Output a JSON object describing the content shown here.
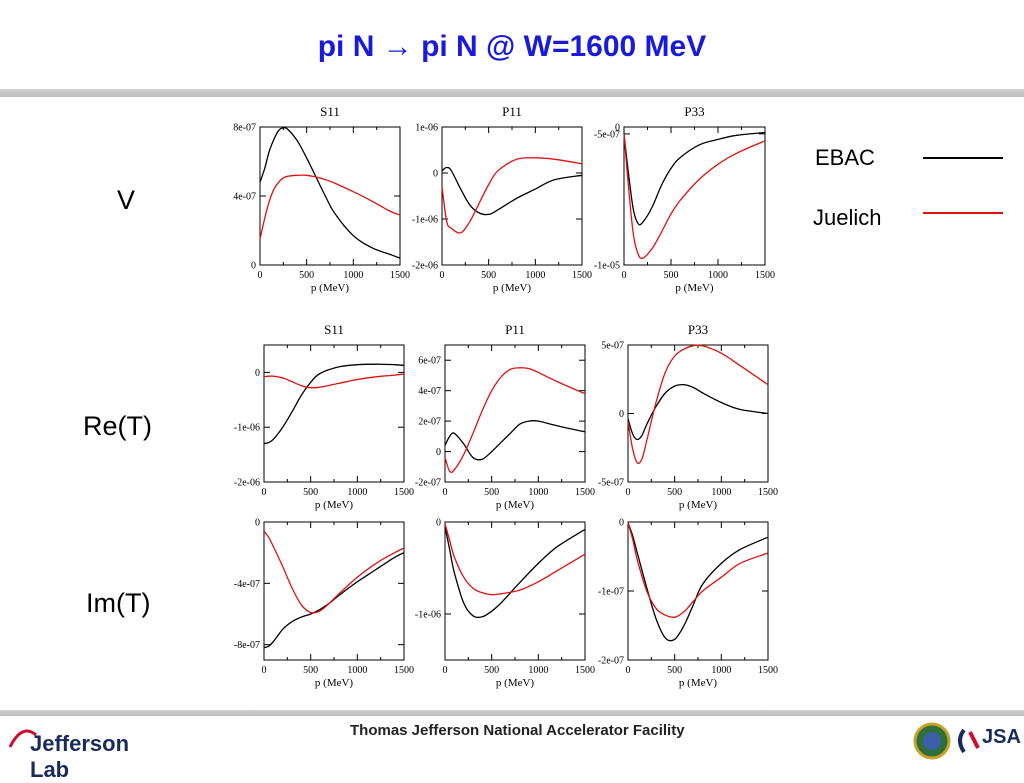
{
  "slide": {
    "title": "pi N → pi N @ W=1600 MeV",
    "rows": {
      "v": "V",
      "ret": "Re(T)",
      "imt": "Im(T)"
    },
    "footer": "Thomas Jefferson National Accelerator Facility",
    "logo_text": "Jefferson Lab",
    "jsa_text": "JSA"
  },
  "legend": [
    {
      "name": "EBAC",
      "color": "#000000"
    },
    {
      "name": "Juelich",
      "color": "#e01010"
    }
  ],
  "colors": {
    "title": "#1a1adc",
    "ebac": "#000000",
    "juelich": "#e01010"
  },
  "chart_data": [
    {
      "type": "line",
      "row": "V",
      "title": "S11",
      "xlabel": "p (MeV)",
      "xlim": [
        0,
        1500
      ],
      "ylim": [
        0,
        8e-07
      ],
      "xticks": [
        "0",
        "500",
        "1000",
        "1500"
      ],
      "yticks": [
        "0",
        "4e-07",
        "8e-07"
      ],
      "x": [
        0,
        50,
        100,
        150,
        200,
        250,
        300,
        400,
        500,
        600,
        700,
        800,
        1000,
        1200,
        1400,
        1500
      ],
      "series": [
        {
          "name": "EBAC",
          "values": [
            4.8e-07,
            5.6e-07,
            6.6e-07,
            7.3e-07,
            7.8e-07,
            7.95e-07,
            7.85e-07,
            7.2e-07,
            6.2e-07,
            5.1e-07,
            4e-07,
            3e-07,
            1.7e-07,
            1e-07,
            6e-08,
            4e-08
          ]
        },
        {
          "name": "Juelich",
          "values": [
            1.5e-07,
            2.7e-07,
            3.7e-07,
            4.4e-07,
            4.8e-07,
            5.05e-07,
            5.15e-07,
            5.2e-07,
            5.2e-07,
            5.1e-07,
            4.95e-07,
            4.75e-07,
            4.25e-07,
            3.7e-07,
            3.1e-07,
            2.9e-07
          ]
        }
      ]
    },
    {
      "type": "line",
      "row": "V",
      "title": "P11",
      "xlabel": "p (MeV)",
      "xlim": [
        0,
        1500
      ],
      "ylim": [
        -2e-06,
        1e-06
      ],
      "xticks": [
        "0",
        "500",
        "1000",
        "1500"
      ],
      "yticks": [
        "-2e-06",
        "-1e-06",
        "0",
        "1e-06"
      ],
      "x": [
        0,
        50,
        100,
        200,
        300,
        400,
        500,
        600,
        800,
        1000,
        1200,
        1500
      ],
      "series": [
        {
          "name": "EBAC",
          "values": [
            5e-08,
            1.2e-07,
            5e-08,
            -3.5e-07,
            -7e-07,
            -8.7e-07,
            -9e-07,
            -8e-07,
            -5.5e-07,
            -3.5e-07,
            -1.5e-07,
            -5e-08
          ]
        },
        {
          "name": "Juelich",
          "values": [
            -3e-07,
            -1.05e-06,
            -1.2e-06,
            -1.3e-06,
            -1.05e-06,
            -6.5e-07,
            -2.5e-07,
            5e-08,
            3e-07,
            3.3e-07,
            3e-07,
            2e-07
          ]
        }
      ]
    },
    {
      "type": "line",
      "row": "V",
      "title": "P33",
      "xlabel": "p (MeV)",
      "xlim": [
        0,
        1500
      ],
      "ylim": [
        -1e-05,
        0
      ],
      "xticks": [
        "0",
        "500",
        "1000",
        "1500"
      ],
      "yticks": [
        "-1e-05",
        "-5e-07",
        "0"
      ],
      "x": [
        0,
        50,
        100,
        150,
        200,
        300,
        400,
        500,
        600,
        800,
        1000,
        1200,
        1500
      ],
      "series": [
        {
          "name": "EBAC",
          "values": [
            -5e-07,
            -3.5e-06,
            -6e-06,
            -7e-06,
            -6.9e-06,
            -5.8e-06,
            -4.2e-06,
            -3e-06,
            -2.2e-06,
            -1.3e-06,
            -9e-07,
            -6e-07,
            -4e-07
          ]
        },
        {
          "name": "Juelich",
          "values": [
            -5e-07,
            -4.5e-06,
            -7.8e-06,
            -9.2e-06,
            -9.5e-06,
            -8.8e-06,
            -7.6e-06,
            -6.3e-06,
            -5.3e-06,
            -3.8e-06,
            -2.7e-06,
            -1.9e-06,
            -1e-06
          ]
        }
      ]
    },
    {
      "type": "line",
      "row": "Re(T)",
      "title": "S11",
      "xlabel": "p (MeV)",
      "xlim": [
        0,
        1500
      ],
      "ylim": [
        -2e-06,
        5e-07
      ],
      "xticks": [
        "0",
        "500",
        "1000",
        "1500"
      ],
      "yticks": [
        "-2e-06",
        "-1e-06",
        "0"
      ],
      "x": [
        0,
        50,
        100,
        200,
        300,
        400,
        500,
        600,
        800,
        1000,
        1200,
        1400,
        1500
      ],
      "series": [
        {
          "name": "EBAC",
          "values": [
            -1.3e-06,
            -1.28e-06,
            -1.22e-06,
            -1e-06,
            -7.2e-07,
            -4.2e-07,
            -1.8e-07,
            -2e-08,
            1e-07,
            1.4e-07,
            1.5e-07,
            1.4e-07,
            1.3e-07
          ]
        },
        {
          "name": "Juelich",
          "values": [
            -8e-08,
            -7e-08,
            -7e-08,
            -1e-07,
            -1.7e-07,
            -2.4e-07,
            -2.8e-07,
            -2.7e-07,
            -2e-07,
            -1.3e-07,
            -8e-08,
            -5e-08,
            -3e-08
          ]
        }
      ]
    },
    {
      "type": "line",
      "row": "Re(T)",
      "title": "P11",
      "xlabel": "p (MeV)",
      "xlim": [
        0,
        1500
      ],
      "ylim": [
        -2e-07,
        7e-07
      ],
      "xticks": [
        "0",
        "500",
        "1000",
        "1500"
      ],
      "yticks": [
        "-2e-07",
        "0",
        "2e-07",
        "4e-07",
        "6e-07"
      ],
      "x": [
        0,
        50,
        100,
        200,
        300,
        400,
        500,
        600,
        700,
        800,
        900,
        1000,
        1200,
        1500
      ],
      "series": [
        {
          "name": "EBAC",
          "values": [
            4e-08,
            1e-07,
            1.2e-07,
            5e-08,
            -4e-08,
            -5e-08,
            0.0,
            6e-08,
            1.2e-07,
            1.8e-07,
            2e-07,
            2e-07,
            1.7e-07,
            1.3e-07
          ]
        },
        {
          "name": "Juelich",
          "values": [
            -4e-08,
            -1.3e-07,
            -1.2e-07,
            -2e-08,
            1.2e-07,
            2.7e-07,
            4e-07,
            4.9e-07,
            5.4e-07,
            5.5e-07,
            5.45e-07,
            5.2e-07,
            4.6e-07,
            3.8e-07
          ]
        }
      ]
    },
    {
      "type": "line",
      "row": "Re(T)",
      "title": "P33",
      "xlabel": "p (MeV)",
      "xlim": [
        0,
        1500
      ],
      "ylim": [
        -5e-07,
        5e-07
      ],
      "xticks": [
        "0",
        "500",
        "1000",
        "1500"
      ],
      "yticks": [
        "-5e-07",
        "0",
        "5e-07"
      ],
      "x": [
        0,
        50,
        100,
        150,
        200,
        300,
        400,
        500,
        600,
        700,
        800,
        1000,
        1200,
        1500
      ],
      "series": [
        {
          "name": "EBAC",
          "values": [
            -4e-08,
            -1.5e-07,
            -1.9e-07,
            -1.6e-07,
            -8e-08,
            5e-08,
            1.5e-07,
            2e-07,
            2.1e-07,
            1.9e-07,
            1.5e-07,
            8e-08,
            3e-08,
            0.0
          ]
        },
        {
          "name": "Juelich",
          "values": [
            -6e-08,
            -2.6e-07,
            -3.6e-07,
            -3.3e-07,
            -2e-07,
            8e-08,
            3e-07,
            4.2e-07,
            4.7e-07,
            4.95e-07,
            4.95e-07,
            4.4e-07,
            3.5e-07,
            2.1e-07
          ]
        }
      ]
    },
    {
      "type": "line",
      "row": "Im(T)",
      "title": "",
      "xlabel": "p (MeV)",
      "xlim": [
        0,
        1500
      ],
      "ylim": [
        -9e-07,
        0
      ],
      "xticks": [
        "0",
        "500",
        "1000",
        "1500"
      ],
      "yticks": [
        "-8e-07",
        "-4e-07",
        "0"
      ],
      "x": [
        0,
        50,
        100,
        200,
        300,
        400,
        500,
        600,
        700,
        800,
        1000,
        1200,
        1400,
        1500
      ],
      "series": [
        {
          "name": "EBAC",
          "values": [
            -8.2e-07,
            -8.1e-07,
            -7.8e-07,
            -7e-07,
            -6.5e-07,
            -6.2e-07,
            -6e-07,
            -5.7e-07,
            -5.3e-07,
            -4.8e-07,
            -3.9e-07,
            -3.1e-07,
            -2.3e-07,
            -2e-07
          ]
        },
        {
          "name": "Juelich",
          "values": [
            -6e-08,
            -1e-07,
            -1.6e-07,
            -2.9e-07,
            -4.3e-07,
            -5.4e-07,
            -5.9e-07,
            -5.8e-07,
            -5.3e-07,
            -4.7e-07,
            -3.6e-07,
            -2.7e-07,
            -2e-07,
            -1.7e-07
          ]
        }
      ]
    },
    {
      "type": "line",
      "row": "Im(T)",
      "title": "",
      "xlabel": "p (MeV)",
      "xlim": [
        0,
        1500
      ],
      "ylim": [
        -1.5e-06,
        0
      ],
      "xticks": [
        "0",
        "500",
        "1000",
        "1500"
      ],
      "yticks": [
        "-1e-06",
        "0"
      ],
      "x": [
        0,
        50,
        100,
        200,
        300,
        400,
        500,
        600,
        800,
        1000,
        1200,
        1500
      ],
      "series": [
        {
          "name": "EBAC",
          "values": [
            -5e-08,
            -3e-07,
            -5.5e-07,
            -8.8e-07,
            -1.02e-06,
            -1.03e-06,
            -9.7e-07,
            -8.8e-07,
            -6.6e-07,
            -4.5e-07,
            -2.7e-07,
            -8e-08
          ]
        },
        {
          "name": "Juelich",
          "values": [
            -2e-08,
            -2e-07,
            -3.8e-07,
            -6e-07,
            -7.2e-07,
            -7.7e-07,
            -7.9e-07,
            -7.8e-07,
            -7.4e-07,
            -6.5e-07,
            -5.3e-07,
            -3.5e-07
          ]
        }
      ]
    },
    {
      "type": "line",
      "row": "Im(T)",
      "title": "",
      "xlabel": "p (MeV)",
      "xlim": [
        0,
        1500
      ],
      "ylim": [
        -2e-07,
        0
      ],
      "xticks": [
        "0",
        "500",
        "1000",
        "1500"
      ],
      "yticks": [
        "-2e-07",
        "-1e-07",
        "0"
      ],
      "x": [
        0,
        50,
        100,
        200,
        300,
        400,
        500,
        600,
        700,
        800,
        1000,
        1200,
        1500
      ],
      "series": [
        {
          "name": "EBAC",
          "values": [
            -1e-09,
            -2e-08,
            -4.5e-08,
            -9.5e-08,
            -1.4e-07,
            -1.68e-07,
            -1.7e-07,
            -1.5e-07,
            -1.2e-07,
            -9e-08,
            -6e-08,
            -4e-08,
            -2.2e-08
          ]
        },
        {
          "name": "Juelich",
          "values": [
            -1e-09,
            -2.5e-08,
            -5.5e-08,
            -1e-07,
            -1.25e-07,
            -1.35e-07,
            -1.38e-07,
            -1.3e-07,
            -1.15e-07,
            -1e-07,
            -8e-08,
            -6e-08,
            -4.5e-08
          ]
        }
      ]
    }
  ]
}
